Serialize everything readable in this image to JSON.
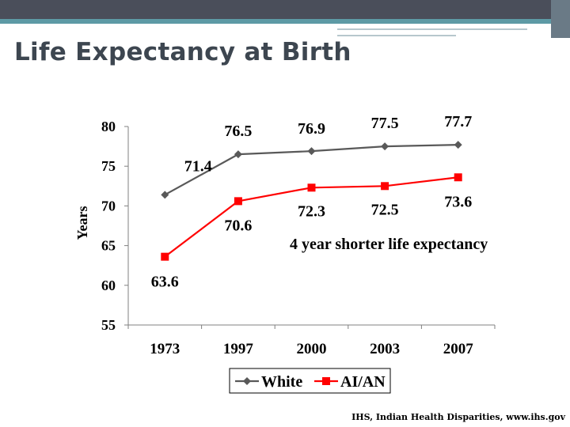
{
  "slide": {
    "title": "Life Expectancy at Birth",
    "source": "IHS, Indian Health Disparities, www.ihs.gov"
  },
  "chart_data": {
    "type": "line",
    "ylabel": "Years",
    "xlabel": "",
    "ylim": [
      55,
      80
    ],
    "yticks": [
      55,
      60,
      65,
      70,
      75,
      80
    ],
    "categories": [
      "1973",
      "1997",
      "2000",
      "2003",
      "2007"
    ],
    "series": [
      {
        "name": "White",
        "values": [
          71.4,
          76.5,
          76.9,
          77.5,
          77.7
        ],
        "labels": [
          "71.4",
          "76.5",
          "76.9",
          "77.5",
          "77.7"
        ],
        "color": "#595959",
        "marker": "diamond"
      },
      {
        "name": "AI/AN",
        "values": [
          63.6,
          70.6,
          72.3,
          72.5,
          73.6
        ],
        "labels": [
          "63.6",
          "70.6",
          "72.3",
          "72.5",
          "73.6"
        ],
        "color": "#ff0000",
        "marker": "square"
      }
    ],
    "annotation": "4 year shorter life expectancy",
    "legend_position": "bottom",
    "grid": false
  }
}
